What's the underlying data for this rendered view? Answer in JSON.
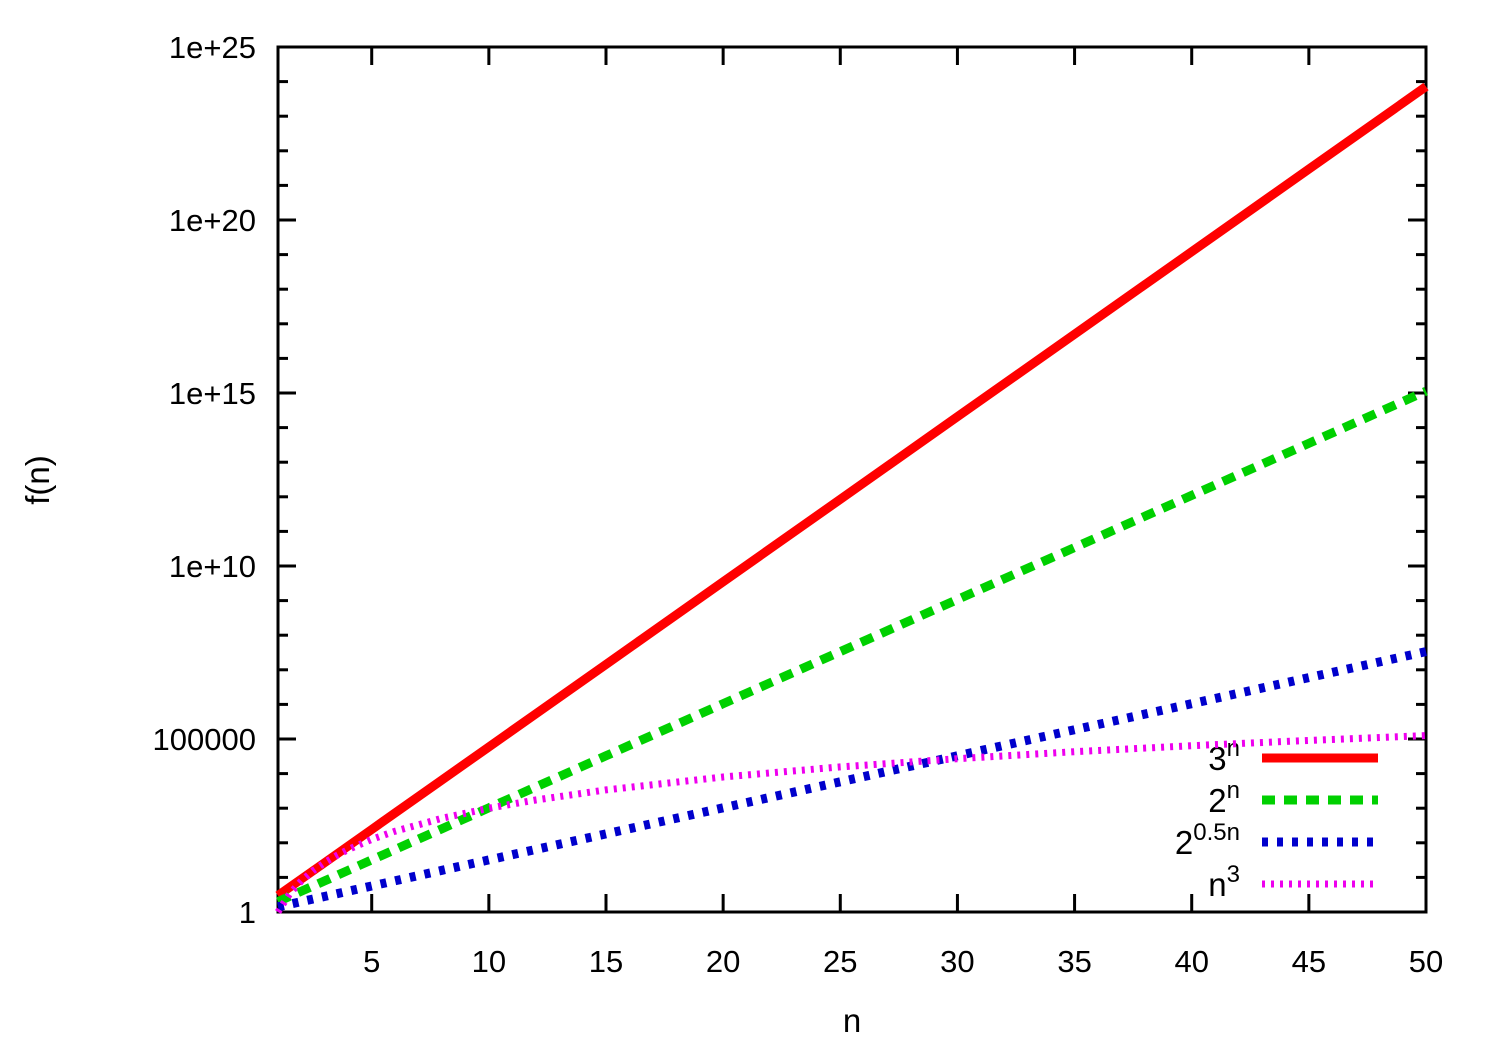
{
  "chart_data": {
    "type": "line",
    "title": "",
    "xlabel": "n",
    "ylabel": "f(n)",
    "x_range": [
      1,
      50
    ],
    "y_scale": "log10",
    "y_range": [
      1,
      1e+25
    ],
    "grid": false,
    "background_color": "#ffffff",
    "axis_color": "#000000",
    "legend_position": "bottom-right-inside",
    "x_ticks": [
      5,
      10,
      15,
      20,
      25,
      30,
      35,
      40,
      45,
      50
    ],
    "y_major_ticks": [
      {
        "value": 1,
        "label": "1"
      },
      {
        "value": 100000.0,
        "label": "100000"
      },
      {
        "value": 10000000000.0,
        "label": "1e+10"
      },
      {
        "value": 1000000000000000.0,
        "label": "1e+15"
      },
      {
        "value": 1e+20,
        "label": "1e+20"
      },
      {
        "value": 1e+25,
        "label": "1e+25"
      }
    ],
    "y_minor_ticks_every_decade": true,
    "series": [
      {
        "name": "3^n",
        "label_base": "3",
        "label_sup": "n",
        "color": "#ff0000",
        "line_style": "solid",
        "line_width": 9,
        "points": [
          [
            1,
            3
          ],
          [
            2,
            9
          ],
          [
            3,
            27
          ],
          [
            4,
            81
          ],
          [
            5,
            243
          ],
          [
            6,
            729
          ],
          [
            8,
            6561
          ],
          [
            10,
            59049
          ],
          [
            12,
            531441
          ],
          [
            15,
            14348907
          ],
          [
            20,
            3486784401
          ],
          [
            25,
            847288609443
          ],
          [
            30,
            205891132094649
          ],
          [
            35,
            5.0031545099e+16
          ],
          [
            40,
            1.2157665459e+19
          ],
          [
            45,
            2.954312706e+21
          ],
          [
            50,
            7.178979877e+23
          ]
        ]
      },
      {
        "name": "2^n",
        "label_base": "2",
        "label_sup": "n",
        "color": "#00d000",
        "line_style": "long-dash",
        "line_width": 9,
        "points": [
          [
            1,
            2
          ],
          [
            2,
            4
          ],
          [
            3,
            8
          ],
          [
            4,
            16
          ],
          [
            5,
            32
          ],
          [
            6,
            64
          ],
          [
            8,
            256
          ],
          [
            10,
            1024
          ],
          [
            12,
            4096
          ],
          [
            15,
            32768
          ],
          [
            20,
            1048576
          ],
          [
            25,
            33554432
          ],
          [
            30,
            1073741824
          ],
          [
            35,
            34359738368.0
          ],
          [
            40,
            1099511627776.0
          ],
          [
            45,
            35184372088832.0
          ],
          [
            50,
            1125899906842624.0
          ]
        ]
      },
      {
        "name": "2^0.5n",
        "label_base": "2",
        "label_sup": "0.5n",
        "color": "#0000cc",
        "line_style": "dash",
        "line_width": 9,
        "points": [
          [
            1,
            1.41421
          ],
          [
            2,
            2
          ],
          [
            3,
            2.82843
          ],
          [
            4,
            4
          ],
          [
            5,
            5.65685
          ],
          [
            6,
            8
          ],
          [
            8,
            16
          ],
          [
            10,
            32
          ],
          [
            12,
            64
          ],
          [
            15,
            181.019
          ],
          [
            20,
            1024
          ],
          [
            25,
            5792.62
          ],
          [
            30,
            32768
          ],
          [
            35,
            185363.8
          ],
          [
            40,
            1048576
          ],
          [
            45,
            5931641.6
          ],
          [
            50,
            33554432
          ]
        ]
      },
      {
        "name": "n^3",
        "label_base": "n",
        "label_sup": "3",
        "color": "#ee00ee",
        "line_style": "fine-dot",
        "line_width": 7,
        "points": [
          [
            1,
            1
          ],
          [
            1.5,
            3.375
          ],
          [
            2,
            8
          ],
          [
            2.5,
            15.625
          ],
          [
            3,
            27
          ],
          [
            3.5,
            42.875
          ],
          [
            4,
            64
          ],
          [
            5,
            125
          ],
          [
            6,
            216
          ],
          [
            8,
            512
          ],
          [
            10,
            1000
          ],
          [
            12,
            1728
          ],
          [
            15,
            3375
          ],
          [
            20,
            8000
          ],
          [
            25,
            15625
          ],
          [
            30,
            27000
          ],
          [
            35,
            42875
          ],
          [
            40,
            64000
          ],
          [
            45,
            91125
          ],
          [
            50,
            125000
          ]
        ]
      }
    ]
  }
}
